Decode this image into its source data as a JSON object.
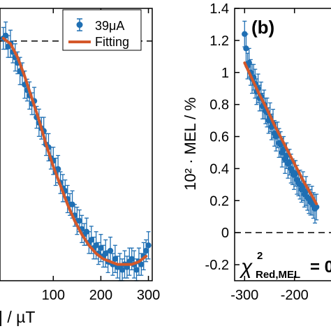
{
  "chart_data": [
    {
      "type": "scatter",
      "panel_label": "",
      "title": "",
      "xlabel": "| / µT",
      "ylabel": "",
      "xlim": [
        -12,
        308
      ],
      "ylim": [
        0.0,
        1.0
      ],
      "x_ticks": [
        100,
        200,
        300
      ],
      "x_tick_labels": [
        "100",
        "200",
        "300"
      ],
      "y_ticks": [],
      "reference_line_y": 0.88,
      "grid": false,
      "legend_position": "top-right",
      "legend": [
        {
          "label": "39μA",
          "kind": "marker-errorbar",
          "color": "#1f6fb3"
        },
        {
          "label": "Fitting",
          "kind": "line",
          "color": "#d4582a"
        }
      ],
      "series": [
        {
          "name": "39μA",
          "kind": "scatter-errorbar",
          "color": "#1f6fb3",
          "x": [
            -5,
            0,
            5,
            10,
            15,
            20,
            25,
            30,
            35,
            40,
            45,
            50,
            55,
            60,
            65,
            70,
            75,
            80,
            85,
            90,
            95,
            100,
            105,
            110,
            115,
            120,
            125,
            130,
            135,
            140,
            145,
            150,
            155,
            160,
            165,
            170,
            175,
            180,
            185,
            190,
            195,
            200,
            205,
            210,
            215,
            220,
            225,
            230,
            235,
            240,
            245,
            250,
            255,
            260,
            265,
            270,
            275,
            280,
            285,
            290,
            295,
            300
          ],
          "y": [
            0.89,
            0.9,
            0.86,
            0.87,
            0.84,
            0.82,
            0.8,
            0.77,
            0.76,
            0.72,
            0.7,
            0.68,
            0.65,
            0.66,
            0.6,
            0.58,
            0.56,
            0.55,
            0.5,
            0.49,
            0.45,
            0.44,
            0.4,
            0.41,
            0.36,
            0.34,
            0.33,
            0.3,
            0.28,
            0.28,
            0.24,
            0.22,
            0.22,
            0.19,
            0.17,
            0.18,
            0.14,
            0.15,
            0.12,
            0.13,
            0.1,
            0.12,
            0.09,
            0.1,
            0.07,
            0.11,
            0.06,
            0.08,
            0.05,
            0.05,
            0.04,
            0.06,
            0.05,
            0.07,
            0.08,
            0.06,
            0.04,
            0.07,
            0.06,
            0.09,
            0.11,
            0.13
          ],
          "err": [
            0.04,
            0.05,
            0.04,
            0.05,
            0.04,
            0.05,
            0.04,
            0.05,
            0.04,
            0.05,
            0.04,
            0.05,
            0.04,
            0.05,
            0.04,
            0.05,
            0.04,
            0.05,
            0.04,
            0.05,
            0.04,
            0.05,
            0.05,
            0.05,
            0.04,
            0.05,
            0.04,
            0.05,
            0.04,
            0.05,
            0.04,
            0.05,
            0.04,
            0.05,
            0.04,
            0.05,
            0.04,
            0.05,
            0.04,
            0.05,
            0.04,
            0.05,
            0.04,
            0.05,
            0.04,
            0.05,
            0.04,
            0.05,
            0.04,
            0.05,
            0.04,
            0.05,
            0.04,
            0.05,
            0.04,
            0.05,
            0.04,
            0.05,
            0.04,
            0.05,
            0.04,
            0.05
          ]
        },
        {
          "name": "Fitting",
          "kind": "line",
          "color": "#d4582a",
          "x": [
            -5,
            10,
            25,
            40,
            55,
            70,
            85,
            100,
            115,
            130,
            145,
            160,
            175,
            190,
            205,
            220,
            235,
            250,
            265,
            280,
            295
          ],
          "y": [
            0.89,
            0.87,
            0.82,
            0.75,
            0.67,
            0.59,
            0.5,
            0.42,
            0.35,
            0.28,
            0.22,
            0.17,
            0.13,
            0.1,
            0.08,
            0.07,
            0.06,
            0.06,
            0.06,
            0.07,
            0.09
          ]
        }
      ]
    },
    {
      "type": "scatter",
      "panel_label": "(b)",
      "title": "",
      "xlabel": "",
      "ylabel": "10² · MEL / %",
      "xlim": [
        -320,
        -110
      ],
      "ylim": [
        -0.3,
        1.4
      ],
      "x_ticks": [
        -300,
        -200
      ],
      "x_tick_labels": [
        "-300",
        "-200"
      ],
      "y_ticks": [
        -0.2,
        0,
        0.2,
        0.4,
        0.6,
        0.8,
        1,
        1.2,
        1.4
      ],
      "y_tick_labels": [
        "-0.2",
        "0",
        "0.2",
        "0.4",
        "0.6",
        "0.8",
        "1",
        "1.2",
        "1.4"
      ],
      "reference_line_y": 0,
      "grid": false,
      "annotation": {
        "chi_symbol": "χ",
        "superscript": "2",
        "subscript": "Red,MEL",
        "value_text": "= 0"
      },
      "series": [
        {
          "name": "",
          "kind": "scatter-errorbar",
          "color": "#1f6fb3",
          "x": [
            -300,
            -297,
            -294,
            -291,
            -288,
            -285,
            -282,
            -279,
            -276,
            -273,
            -270,
            -267,
            -264,
            -261,
            -258,
            -255,
            -252,
            -249,
            -246,
            -243,
            -240,
            -237,
            -234,
            -231,
            -228,
            -225,
            -222,
            -219,
            -216,
            -213,
            -210,
            -207,
            -204,
            -201,
            -198,
            -195,
            -192,
            -189,
            -186,
            -183,
            -180,
            -177,
            -174,
            -171,
            -168,
            -165,
            -162,
            -159,
            -156
          ],
          "y": [
            1.24,
            1.15,
            1.04,
            1.06,
            1.0,
            0.96,
            0.97,
            0.93,
            0.88,
            0.9,
            0.84,
            0.85,
            0.79,
            0.8,
            0.76,
            0.75,
            0.7,
            0.72,
            0.66,
            0.68,
            0.62,
            0.6,
            0.61,
            0.56,
            0.55,
            0.5,
            0.52,
            0.46,
            0.48,
            0.43,
            0.44,
            0.4,
            0.38,
            0.36,
            0.37,
            0.33,
            0.31,
            0.3,
            0.27,
            0.29,
            0.24,
            0.26,
            0.22,
            0.21,
            0.19,
            0.2,
            0.17,
            0.15,
            0.16
          ],
          "err": [
            0.08,
            0.09,
            0.08,
            0.09,
            0.08,
            0.09,
            0.08,
            0.09,
            0.08,
            0.09,
            0.08,
            0.09,
            0.08,
            0.09,
            0.08,
            0.09,
            0.08,
            0.09,
            0.08,
            0.09,
            0.08,
            0.09,
            0.08,
            0.09,
            0.08,
            0.09,
            0.08,
            0.09,
            0.08,
            0.09,
            0.08,
            0.09,
            0.08,
            0.09,
            0.08,
            0.09,
            0.08,
            0.09,
            0.08,
            0.09,
            0.08,
            0.09,
            0.08,
            0.09,
            0.08,
            0.09,
            0.08,
            0.09,
            0.08
          ]
        },
        {
          "name": "",
          "kind": "line",
          "color": "#d4582a",
          "x": [
            -300,
            -285,
            -270,
            -255,
            -240,
            -225,
            -210,
            -195,
            -180,
            -165,
            -156
          ],
          "y": [
            1.06,
            0.96,
            0.86,
            0.77,
            0.67,
            0.58,
            0.49,
            0.4,
            0.31,
            0.23,
            0.18
          ]
        }
      ]
    }
  ]
}
